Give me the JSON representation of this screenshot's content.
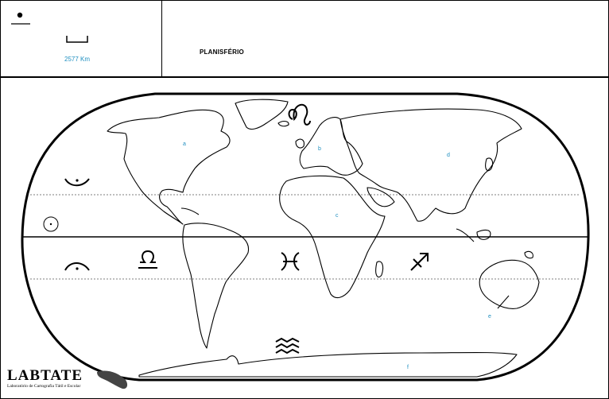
{
  "title": "PLANISFÉRIO",
  "scale": {
    "label": "2577 Km"
  },
  "region_labels": [
    {
      "key": "a",
      "text": "a"
    },
    {
      "key": "b",
      "text": "b"
    },
    {
      "key": "c",
      "text": "c"
    },
    {
      "key": "d",
      "text": "d"
    },
    {
      "key": "e",
      "text": "e"
    },
    {
      "key": "f",
      "text": "f"
    }
  ],
  "symbols": [
    "point-symbol",
    "scale-bar-symbol",
    "sunrise-symbol",
    "sun-circle-symbol",
    "sunset-symbol",
    "leo-symbol",
    "libra-symbol",
    "pisces-symbol",
    "sagittarius-symbol",
    "aquarius-symbol"
  ],
  "logo": {
    "name": "LABTATE",
    "subtitle": "Laboratório de Cartografia Tátil e Escolar"
  },
  "colors": {
    "label": "#1f8fc0",
    "line": "#000000"
  }
}
